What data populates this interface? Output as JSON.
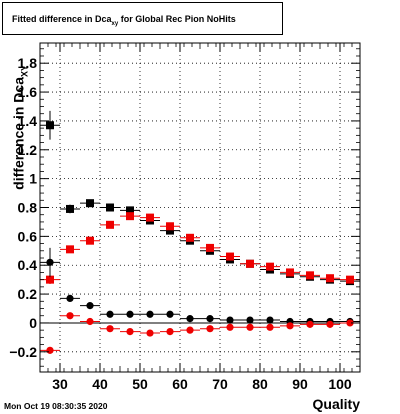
{
  "title": {
    "prefix": "Fitted difference in Dca",
    "sub": "xy",
    "suffix": " for Global Rec Pion NoHits"
  },
  "ylabel": {
    "main": "difference in Dca",
    "sub": "XY"
  },
  "xlabel": "Quality",
  "timestamp": "Mon Oct 19 08:30:35 2020",
  "chart_data": {
    "type": "scatter",
    "xlim": [
      25,
      105
    ],
    "ylim": [
      -0.34,
      1.94
    ],
    "xticks": [
      30,
      40,
      50,
      60,
      70,
      80,
      90,
      100
    ],
    "xtick_labels": [
      "30",
      "40",
      "50",
      "60",
      "70",
      "80",
      "90",
      "100"
    ],
    "yticks": [
      -0.2,
      0,
      0.2,
      0.4,
      0.6,
      0.8,
      1,
      1.2,
      1.4,
      1.6,
      1.8
    ],
    "ytick_labels": [
      "−0.2",
      "0",
      "0.2",
      "0.4",
      "0.6",
      "0.8",
      "1",
      "1.2",
      "1.4",
      "1.6",
      "1.8"
    ],
    "grid": true,
    "series": [
      {
        "marker": "square",
        "color": "#000000",
        "x": [
          27.5,
          32.5,
          37.5,
          42.5,
          47.5,
          52.5,
          57.5,
          62.5,
          67.5,
          72.5,
          77.5,
          82.5,
          87.5,
          92.5,
          97.5,
          102.5
        ],
        "y": [
          1.37,
          0.79,
          0.83,
          0.8,
          0.78,
          0.71,
          0.64,
          0.57,
          0.5,
          0.44,
          0.41,
          0.37,
          0.34,
          0.32,
          0.3,
          0.29
        ],
        "yerr": [
          0.1,
          0.03,
          0.02,
          0.02,
          0.02,
          0.02,
          0.02,
          0.015,
          0.015,
          0.015,
          0.01,
          0.01,
          0.01,
          0.01,
          0.01,
          0.01
        ]
      },
      {
        "marker": "square",
        "color": "#ee0000",
        "x": [
          27.5,
          32.5,
          37.5,
          42.5,
          47.5,
          52.5,
          57.5,
          62.5,
          67.5,
          72.5,
          77.5,
          82.5,
          87.5,
          92.5,
          97.5,
          102.5
        ],
        "y": [
          0.3,
          0.51,
          0.57,
          0.68,
          0.74,
          0.73,
          0.67,
          0.59,
          0.52,
          0.46,
          0.41,
          0.39,
          0.35,
          0.33,
          0.31,
          0.3
        ],
        "yerr": [
          0.03,
          0.02,
          0.02,
          0.02,
          0.02,
          0.02,
          0.02,
          0.015,
          0.015,
          0.015,
          0.01,
          0.01,
          0.01,
          0.01,
          0.01,
          0.01
        ]
      },
      {
        "marker": "circle",
        "color": "#000000",
        "x": [
          27.5,
          32.5,
          37.5,
          42.5,
          47.5,
          52.5,
          57.5,
          62.5,
          67.5,
          72.5,
          77.5,
          82.5,
          87.5,
          92.5,
          97.5,
          102.5
        ],
        "y": [
          0.42,
          0.17,
          0.12,
          0.06,
          0.06,
          0.06,
          0.06,
          0.03,
          0.03,
          0.02,
          0.02,
          0.02,
          0.01,
          0.01,
          0.01,
          0.01
        ],
        "yerr": [
          0.1,
          0.02,
          0.02,
          0.015,
          0.015,
          0.015,
          0.015,
          0.01,
          0.01,
          0.01,
          0.01,
          0.01,
          0.01,
          0.01,
          0.01,
          0.01
        ]
      },
      {
        "marker": "circle",
        "color": "#ee0000",
        "x": [
          27.5,
          32.5,
          37.5,
          42.5,
          47.5,
          52.5,
          57.5,
          62.5,
          67.5,
          72.5,
          77.5,
          82.5,
          87.5,
          92.5,
          97.5,
          102.5
        ],
        "y": [
          -0.19,
          0.05,
          0.01,
          -0.04,
          -0.06,
          -0.07,
          -0.06,
          -0.05,
          -0.04,
          -0.03,
          -0.03,
          -0.03,
          -0.02,
          -0.01,
          -0.01,
          0.0
        ],
        "yerr": [
          0.02,
          0.02,
          0.015,
          0.015,
          0.015,
          0.015,
          0.01,
          0.01,
          0.01,
          0.01,
          0.01,
          0.01,
          0.01,
          0.01,
          0.01,
          0.01
        ]
      }
    ]
  }
}
